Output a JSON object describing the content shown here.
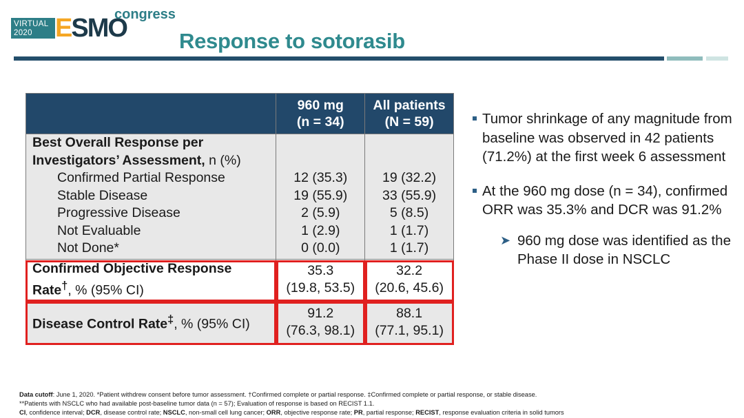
{
  "logo": {
    "virtual_line1": "VIRTUAL",
    "virtual_line2": "2020",
    "brand_e": "E",
    "brand_rest": "SMO",
    "congress": "congress"
  },
  "title": "Response to sotorasib",
  "table": {
    "headers": [
      {
        "line1": "",
        "line2": ""
      },
      {
        "line1": "960 mg",
        "line2": "(n = 34)"
      },
      {
        "line1": "All patients",
        "line2": "(N = 59)"
      }
    ],
    "section_title_bold1": "Best Overall Response per",
    "section_title_bold2": "Investigators’ Assessment,",
    "section_title_normal": " n (%)",
    "rows": [
      {
        "label": "Confirmed Partial Response",
        "v960": "12 (35.3)",
        "vall": "19 (32.2)"
      },
      {
        "label": "Stable Disease",
        "v960": "19 (55.9)",
        "vall": "33 (55.9)"
      },
      {
        "label": "Progressive Disease",
        "v960": "2 (5.9)",
        "vall": "5 (8.5)"
      },
      {
        "label": "Not Evaluable",
        "v960": "1 (2.9)",
        "vall": "1 (1.7)"
      },
      {
        "label": "Not Done*",
        "v960": "0 (0.0)",
        "vall": "1 (1.7)"
      }
    ],
    "orr": {
      "label_bold1": "Confirmed Objective Response",
      "label_bold2": "Rate",
      "label_sup": "†",
      "label_normal": ", % (95% CI)",
      "v960_line1": "35.3",
      "v960_line2": "(19.8, 53.5)",
      "vall_line1": "32.2",
      "vall_line2": "(20.6, 45.6)"
    },
    "dcr": {
      "label_bold": "Disease Control Rate",
      "label_sup": "‡",
      "label_normal": ", % (95% CI)",
      "v960_line1": "91.2",
      "v960_line2": "(76.3, 98.1)",
      "vall_line1": "88.1",
      "vall_line2": "(77.1, 95.1)"
    }
  },
  "bullets": [
    {
      "text": "Tumor shrinkage of any magnitude from baseline was observed in 42 patients (71.2%) at the first week 6 assessment"
    },
    {
      "text": "At the 960 mg dose (n = 34), confirmed ORR was 35.3% and DCR was 91.2%"
    }
  ],
  "sub_bullet": {
    "text": "960 mg dose was identified as the Phase II dose in NSCLC"
  },
  "footnotes": {
    "line1_bold": "Data cutoff",
    "line1_text": ": June 1, 2020. *Patient withdrew consent before tumor assessment. †Confirmed complete or partial response. ‡Confirmed complete or partial response, or stable disease.",
    "line2_text": "**Patients with NSCLC who had available post-baseline tumor data (n = 57); Evaluation of response is based on RECIST 1.1.",
    "line3_parts": [
      {
        "bold": "CI",
        "text": ", confidence interval; "
      },
      {
        "bold": "DCR",
        "text": ", disease control rate; "
      },
      {
        "bold": "NSCLC",
        "text": ", non-small cell lung cancer; "
      },
      {
        "bold": "ORR",
        "text": ", objective response rate; "
      },
      {
        "bold": "PR",
        "text": ", partial response; "
      },
      {
        "bold": "RECIST",
        "text": ", response evaluation criteria in solid tumors"
      }
    ]
  },
  "colors": {
    "header_bg": "#22486a",
    "title": "#2f8a8e",
    "highlight": "#e0201f",
    "row_bg": "#e8e8e8"
  }
}
